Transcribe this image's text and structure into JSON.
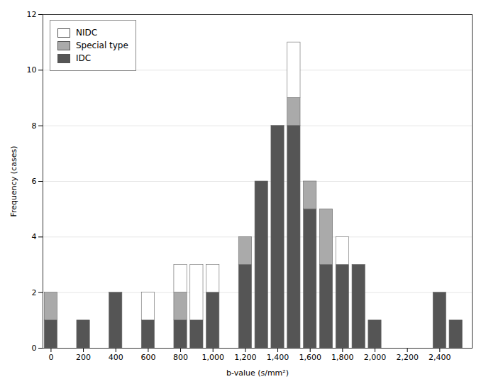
{
  "chart_data": {
    "type": "bar",
    "stacked": true,
    "x": [
      0,
      100,
      200,
      300,
      400,
      500,
      600,
      700,
      800,
      900,
      1000,
      1100,
      1200,
      1300,
      1400,
      1500,
      1600,
      1700,
      1800,
      1900,
      2000,
      2100,
      2200,
      2300,
      2400,
      2500
    ],
    "series": [
      {
        "name": "IDC",
        "color": "#555555",
        "values": [
          1,
          0,
          1,
          0,
          2,
          0,
          1,
          0,
          1,
          1,
          2,
          0,
          3,
          6,
          8,
          8,
          5,
          3,
          3,
          3,
          1,
          0,
          0,
          0,
          2,
          1
        ]
      },
      {
        "name": "Special type",
        "color": "#aaaaaa",
        "values": [
          1,
          0,
          0,
          0,
          0,
          0,
          0,
          0,
          1,
          0,
          0,
          0,
          1,
          0,
          0,
          1,
          1,
          2,
          0,
          0,
          0,
          0,
          0,
          0,
          0,
          0
        ]
      },
      {
        "name": "NIDC",
        "color": "#ffffff",
        "values": [
          0,
          0,
          0,
          0,
          0,
          0,
          1,
          0,
          1,
          2,
          1,
          0,
          0,
          0,
          0,
          2,
          0,
          0,
          1,
          0,
          0,
          0,
          0,
          0,
          0,
          0
        ]
      }
    ],
    "xlabel": "b-value (s/mm²)",
    "ylabel": "Frequency (cases)",
    "xlim": [
      -50,
      2600
    ],
    "xticks": [
      0,
      200,
      400,
      600,
      800,
      1000,
      1200,
      1400,
      1600,
      1800,
      2000,
      2200,
      2400
    ],
    "ylim": [
      0,
      12
    ],
    "yticks": [
      0,
      2,
      4,
      6,
      8,
      10,
      12
    ],
    "grid": "y",
    "legend": "upper left"
  }
}
